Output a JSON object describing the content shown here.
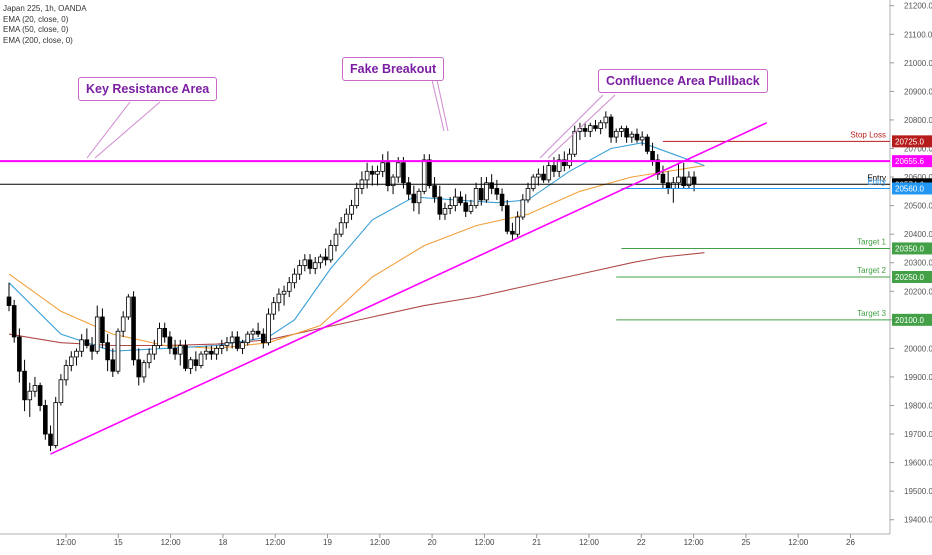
{
  "legend": {
    "symbol": "Japan 225, 1h, OANDA",
    "ema_fast": "EMA (20, close, 0)",
    "ema_mid": "EMA (50, close, 0)",
    "ema_slow": "EMA (200, close, 0)"
  },
  "annotations": {
    "key_resistance": "Key Resistance Area",
    "fake_breakout": "Fake Breakout",
    "confluence": "Confluence Area Pullback"
  },
  "chart_data": {
    "type": "candlestick",
    "title": "Japan 225, 1h, OANDA",
    "ylim": [
      19350,
      21220
    ],
    "y_ticks": [
      21200,
      21100,
      21000,
      20900,
      20800,
      20700,
      20600,
      20500,
      20400,
      20300,
      20200,
      20100,
      20000,
      19900,
      19800,
      19700,
      19600,
      19500,
      19400
    ],
    "y_tick_labels": [
      "21200.0",
      "21100.0",
      "21000.0",
      "20900.0",
      "20800.0",
      "20700.0",
      "20600.0",
      "20500.0",
      "20400.0",
      "20300.0",
      "20200.0",
      "20100.0",
      "20000.0",
      "19900.0",
      "19800.0",
      "19700.0",
      "19600.0",
      "19500.0",
      "19400.0"
    ],
    "x_labels": [
      "12:00",
      "15",
      "12:00",
      "18",
      "12:00",
      "19",
      "12:00",
      "20",
      "12:00",
      "21",
      "12:00",
      "22",
      "12:00",
      "25",
      "12:00",
      "26"
    ],
    "bar_span": 224,
    "candles": [
      {
        "o": 20180,
        "h": 20230,
        "l": 20130,
        "c": 20150
      },
      {
        "o": 20150,
        "h": 20170,
        "l": 20020,
        "c": 20040
      },
      {
        "o": 20040,
        "h": 20070,
        "l": 19880,
        "c": 19920
      },
      {
        "o": 19920,
        "h": 19960,
        "l": 19780,
        "c": 19820
      },
      {
        "o": 19820,
        "h": 19880,
        "l": 19760,
        "c": 19850
      },
      {
        "o": 19850,
        "h": 19900,
        "l": 19830,
        "c": 19870
      },
      {
        "o": 19870,
        "h": 19880,
        "l": 19780,
        "c": 19800
      },
      {
        "o": 19800,
        "h": 19820,
        "l": 19680,
        "c": 19700
      },
      {
        "o": 19700,
        "h": 19730,
        "l": 19640,
        "c": 19660
      },
      {
        "o": 19660,
        "h": 19830,
        "l": 19650,
        "c": 19810
      },
      {
        "o": 19810,
        "h": 19910,
        "l": 19800,
        "c": 19890
      },
      {
        "o": 19890,
        "h": 19960,
        "l": 19870,
        "c": 19940
      },
      {
        "o": 19940,
        "h": 19990,
        "l": 19920,
        "c": 19970
      },
      {
        "o": 19970,
        "h": 20000,
        "l": 19940,
        "c": 19990
      },
      {
        "o": 19990,
        "h": 20050,
        "l": 19970,
        "c": 20030
      },
      {
        "o": 20030,
        "h": 20070,
        "l": 20000,
        "c": 20010
      },
      {
        "o": 20010,
        "h": 20040,
        "l": 19960,
        "c": 19990
      },
      {
        "o": 19990,
        "h": 20150,
        "l": 19980,
        "c": 20110
      },
      {
        "o": 20110,
        "h": 20140,
        "l": 20000,
        "c": 20020
      },
      {
        "o": 20020,
        "h": 20050,
        "l": 19920,
        "c": 19960
      },
      {
        "o": 19960,
        "h": 20000,
        "l": 19900,
        "c": 19920
      },
      {
        "o": 19920,
        "h": 20070,
        "l": 19910,
        "c": 20060
      },
      {
        "o": 20060,
        "h": 20130,
        "l": 20040,
        "c": 20110
      },
      {
        "o": 20110,
        "h": 20190,
        "l": 20100,
        "c": 20180
      },
      {
        "o": 20180,
        "h": 20200,
        "l": 19940,
        "c": 19960
      },
      {
        "o": 19960,
        "h": 20000,
        "l": 19870,
        "c": 19900
      },
      {
        "o": 19900,
        "h": 19960,
        "l": 19880,
        "c": 19950
      },
      {
        "o": 19950,
        "h": 20000,
        "l": 19930,
        "c": 19980
      },
      {
        "o": 19980,
        "h": 20030,
        "l": 19960,
        "c": 20010
      },
      {
        "o": 20010,
        "h": 20090,
        "l": 20000,
        "c": 20070
      },
      {
        "o": 20070,
        "h": 20090,
        "l": 20020,
        "c": 20040
      },
      {
        "o": 20040,
        "h": 20060,
        "l": 19980,
        "c": 20000
      },
      {
        "o": 20000,
        "h": 20030,
        "l": 19960,
        "c": 19980
      },
      {
        "o": 19980,
        "h": 20030,
        "l": 19940,
        "c": 20010
      },
      {
        "o": 20010,
        "h": 20030,
        "l": 19920,
        "c": 19930
      },
      {
        "o": 19930,
        "h": 19970,
        "l": 19910,
        "c": 19960
      },
      {
        "o": 19960,
        "h": 19990,
        "l": 19920,
        "c": 19940
      },
      {
        "o": 19940,
        "h": 19990,
        "l": 19930,
        "c": 19980
      },
      {
        "o": 19980,
        "h": 20010,
        "l": 19960,
        "c": 19990
      },
      {
        "o": 19990,
        "h": 20010,
        "l": 19960,
        "c": 19980
      },
      {
        "o": 19980,
        "h": 20010,
        "l": 19960,
        "c": 20000
      },
      {
        "o": 20000,
        "h": 20030,
        "l": 19980,
        "c": 20010
      },
      {
        "o": 20010,
        "h": 20040,
        "l": 19990,
        "c": 20020
      },
      {
        "o": 20020,
        "h": 20060,
        "l": 20000,
        "c": 20040
      },
      {
        "o": 20040,
        "h": 20060,
        "l": 19990,
        "c": 20000
      },
      {
        "o": 20000,
        "h": 20030,
        "l": 19980,
        "c": 20020
      },
      {
        "o": 20020,
        "h": 20060,
        "l": 20010,
        "c": 20050
      },
      {
        "o": 20050,
        "h": 20070,
        "l": 20030,
        "c": 20060
      },
      {
        "o": 20060,
        "h": 20090,
        "l": 20040,
        "c": 20050
      },
      {
        "o": 20050,
        "h": 20070,
        "l": 20000,
        "c": 20020
      },
      {
        "o": 20020,
        "h": 20140,
        "l": 20010,
        "c": 20120
      },
      {
        "o": 20120,
        "h": 20180,
        "l": 20100,
        "c": 20160
      },
      {
        "o": 20160,
        "h": 20210,
        "l": 20130,
        "c": 20190
      },
      {
        "o": 20190,
        "h": 20220,
        "l": 20150,
        "c": 20200
      },
      {
        "o": 20200,
        "h": 20250,
        "l": 20180,
        "c": 20230
      },
      {
        "o": 20230,
        "h": 20280,
        "l": 20210,
        "c": 20260
      },
      {
        "o": 20260,
        "h": 20310,
        "l": 20240,
        "c": 20290
      },
      {
        "o": 20290,
        "h": 20330,
        "l": 20270,
        "c": 20310
      },
      {
        "o": 20310,
        "h": 20330,
        "l": 20260,
        "c": 20280
      },
      {
        "o": 20280,
        "h": 20320,
        "l": 20260,
        "c": 20300
      },
      {
        "o": 20300,
        "h": 20330,
        "l": 20280,
        "c": 20320
      },
      {
        "o": 20320,
        "h": 20350,
        "l": 20290,
        "c": 20310
      },
      {
        "o": 20310,
        "h": 20380,
        "l": 20300,
        "c": 20360
      },
      {
        "o": 20360,
        "h": 20420,
        "l": 20340,
        "c": 20400
      },
      {
        "o": 20400,
        "h": 20460,
        "l": 20390,
        "c": 20440
      },
      {
        "o": 20440,
        "h": 20490,
        "l": 20420,
        "c": 20470
      },
      {
        "o": 20470,
        "h": 20520,
        "l": 20450,
        "c": 20500
      },
      {
        "o": 20500,
        "h": 20580,
        "l": 20490,
        "c": 20560
      },
      {
        "o": 20560,
        "h": 20620,
        "l": 20540,
        "c": 20590
      },
      {
        "o": 20590,
        "h": 20650,
        "l": 20560,
        "c": 20620
      },
      {
        "o": 20620,
        "h": 20640,
        "l": 20570,
        "c": 20610
      },
      {
        "o": 20610,
        "h": 20640,
        "l": 20570,
        "c": 20620
      },
      {
        "o": 20620,
        "h": 20680,
        "l": 20600,
        "c": 20650
      },
      {
        "o": 20650,
        "h": 20690,
        "l": 20550,
        "c": 20570
      },
      {
        "o": 20570,
        "h": 20610,
        "l": 20540,
        "c": 20600
      },
      {
        "o": 20600,
        "h": 20670,
        "l": 20580,
        "c": 20650
      },
      {
        "o": 20650,
        "h": 20670,
        "l": 20560,
        "c": 20580
      },
      {
        "o": 20580,
        "h": 20600,
        "l": 20520,
        "c": 20540
      },
      {
        "o": 20540,
        "h": 20570,
        "l": 20480,
        "c": 20510
      },
      {
        "o": 20510,
        "h": 20560,
        "l": 20470,
        "c": 20550
      },
      {
        "o": 20550,
        "h": 20680,
        "l": 20540,
        "c": 20660
      },
      {
        "o": 20660,
        "h": 20680,
        "l": 20560,
        "c": 20570
      },
      {
        "o": 20570,
        "h": 20600,
        "l": 20510,
        "c": 20530
      },
      {
        "o": 20530,
        "h": 20570,
        "l": 20450,
        "c": 20470
      },
      {
        "o": 20470,
        "h": 20510,
        "l": 20450,
        "c": 20490
      },
      {
        "o": 20490,
        "h": 20530,
        "l": 20470,
        "c": 20500
      },
      {
        "o": 20500,
        "h": 20560,
        "l": 20480,
        "c": 20530
      },
      {
        "o": 20530,
        "h": 20550,
        "l": 20500,
        "c": 20510
      },
      {
        "o": 20510,
        "h": 20540,
        "l": 20460,
        "c": 20480
      },
      {
        "o": 20480,
        "h": 20520,
        "l": 20470,
        "c": 20500
      },
      {
        "o": 20500,
        "h": 20580,
        "l": 20490,
        "c": 20560
      },
      {
        "o": 20560,
        "h": 20600,
        "l": 20500,
        "c": 20520
      },
      {
        "o": 20520,
        "h": 20600,
        "l": 20510,
        "c": 20580
      },
      {
        "o": 20580,
        "h": 20610,
        "l": 20540,
        "c": 20560
      },
      {
        "o": 20560,
        "h": 20590,
        "l": 20520,
        "c": 20540
      },
      {
        "o": 20540,
        "h": 20560,
        "l": 20480,
        "c": 20500
      },
      {
        "o": 20500,
        "h": 20520,
        "l": 20400,
        "c": 20410
      },
      {
        "o": 20410,
        "h": 20440,
        "l": 20380,
        "c": 20400
      },
      {
        "o": 20400,
        "h": 20480,
        "l": 20390,
        "c": 20460
      },
      {
        "o": 20460,
        "h": 20540,
        "l": 20450,
        "c": 20520
      },
      {
        "o": 20520,
        "h": 20580,
        "l": 20510,
        "c": 20560
      },
      {
        "o": 20560,
        "h": 20610,
        "l": 20550,
        "c": 20600
      },
      {
        "o": 20600,
        "h": 20630,
        "l": 20570,
        "c": 20610
      },
      {
        "o": 20610,
        "h": 20640,
        "l": 20580,
        "c": 20590
      },
      {
        "o": 20590,
        "h": 20660,
        "l": 20580,
        "c": 20640
      },
      {
        "o": 20640,
        "h": 20670,
        "l": 20600,
        "c": 20620
      },
      {
        "o": 20620,
        "h": 20680,
        "l": 20600,
        "c": 20660
      },
      {
        "o": 20660,
        "h": 20690,
        "l": 20620,
        "c": 20640
      },
      {
        "o": 20640,
        "h": 20700,
        "l": 20630,
        "c": 20680
      },
      {
        "o": 20680,
        "h": 20780,
        "l": 20670,
        "c": 20760
      },
      {
        "o": 20760,
        "h": 20790,
        "l": 20730,
        "c": 20770
      },
      {
        "o": 20770,
        "h": 20790,
        "l": 20740,
        "c": 20760
      },
      {
        "o": 20760,
        "h": 20790,
        "l": 20740,
        "c": 20780
      },
      {
        "o": 20780,
        "h": 20800,
        "l": 20760,
        "c": 20770
      },
      {
        "o": 20770,
        "h": 20800,
        "l": 20750,
        "c": 20790
      },
      {
        "o": 20790,
        "h": 20830,
        "l": 20770,
        "c": 20810
      },
      {
        "o": 20810,
        "h": 20820,
        "l": 20720,
        "c": 20740
      },
      {
        "o": 20740,
        "h": 20770,
        "l": 20720,
        "c": 20760
      },
      {
        "o": 20760,
        "h": 20780,
        "l": 20740,
        "c": 20770
      },
      {
        "o": 20770,
        "h": 20780,
        "l": 20720,
        "c": 20740
      },
      {
        "o": 20740,
        "h": 20760,
        "l": 20720,
        "c": 20750
      },
      {
        "o": 20750,
        "h": 20770,
        "l": 20720,
        "c": 20730
      },
      {
        "o": 20730,
        "h": 20760,
        "l": 20710,
        "c": 20740
      },
      {
        "o": 20740,
        "h": 20750,
        "l": 20680,
        "c": 20690
      },
      {
        "o": 20690,
        "h": 20720,
        "l": 20640,
        "c": 20660
      },
      {
        "o": 20660,
        "h": 20680,
        "l": 20590,
        "c": 20610
      },
      {
        "o": 20610,
        "h": 20640,
        "l": 20560,
        "c": 20580
      },
      {
        "o": 20580,
        "h": 20620,
        "l": 20540,
        "c": 20560
      },
      {
        "o": 20560,
        "h": 20600,
        "l": 20510,
        "c": 20580
      },
      {
        "o": 20580,
        "h": 20650,
        "l": 20560,
        "c": 20600
      },
      {
        "o": 20600,
        "h": 20650,
        "l": 20560,
        "c": 20570
      },
      {
        "o": 20570,
        "h": 20620,
        "l": 20560,
        "c": 20600
      },
      {
        "o": 20600,
        "h": 20620,
        "l": 20550,
        "c": 20575
      }
    ],
    "ema20": [
      [
        0,
        20230
      ],
      [
        10,
        20050
      ],
      [
        20,
        19990
      ],
      [
        30,
        20000
      ],
      [
        40,
        20010
      ],
      [
        50,
        20040
      ],
      [
        55,
        20100
      ],
      [
        62,
        20280
      ],
      [
        70,
        20450
      ],
      [
        78,
        20530
      ],
      [
        86,
        20520
      ],
      [
        94,
        20510
      ],
      [
        100,
        20520
      ],
      [
        108,
        20620
      ],
      [
        116,
        20700
      ],
      [
        122,
        20720
      ],
      [
        128,
        20680
      ],
      [
        134,
        20640
      ]
    ],
    "ema50": [
      [
        0,
        20260
      ],
      [
        10,
        20130
      ],
      [
        20,
        20050
      ],
      [
        30,
        20010
      ],
      [
        40,
        20000
      ],
      [
        50,
        20020
      ],
      [
        60,
        20080
      ],
      [
        70,
        20250
      ],
      [
        80,
        20360
      ],
      [
        90,
        20430
      ],
      [
        100,
        20470
      ],
      [
        110,
        20550
      ],
      [
        120,
        20600
      ],
      [
        134,
        20640
      ]
    ],
    "ema200": [
      [
        0,
        20050
      ],
      [
        10,
        20020
      ],
      [
        20,
        20010
      ],
      [
        30,
        20010
      ],
      [
        40,
        20015
      ],
      [
        50,
        20030
      ],
      [
        60,
        20070
      ],
      [
        70,
        20110
      ],
      [
        80,
        20150
      ],
      [
        90,
        20180
      ],
      [
        100,
        20220
      ],
      [
        110,
        20260
      ],
      [
        120,
        20300
      ],
      [
        126,
        20320
      ],
      [
        134,
        20335
      ]
    ],
    "trendline": {
      "from": [
        8,
        19630
      ],
      "to": [
        146,
        20790
      ]
    },
    "levels": [
      {
        "name": "Stop Loss",
        "value": 20725,
        "label": "20725.0",
        "color": "#b71c1c",
        "x_from": 126
      },
      {
        "name": "",
        "value": 20655.6,
        "label": "20655.6",
        "color": "#ff00ff",
        "x_from": 0
      },
      {
        "name": "Entry",
        "value": 20574.6,
        "label": "20574.6",
        "color": "#000000",
        "x_from": 0
      },
      {
        "name": "Entry",
        "value": 20560,
        "label": "20560.0",
        "color": "#2196f3",
        "x_from": 118
      },
      {
        "name": "Target 1",
        "value": 20350,
        "label": "20350.0",
        "color": "#43a047",
        "x_from": 118
      },
      {
        "name": "Target 2",
        "value": 20250,
        "label": "20250.0",
        "color": "#43a047",
        "x_from": 117
      },
      {
        "name": "Target 3",
        "value": 20100,
        "label": "20100.0",
        "color": "#43a047",
        "x_from": 117
      }
    ],
    "grid": false
  }
}
